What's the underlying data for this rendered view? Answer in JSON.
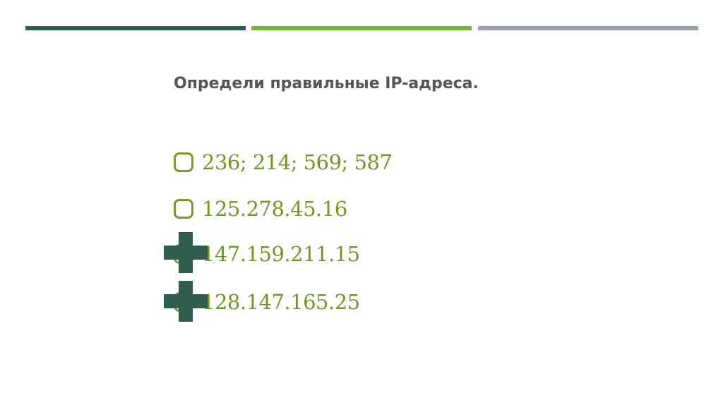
{
  "colors": {
    "bar1": "#2f5e50",
    "bar2": "#7cb33a",
    "bar3": "#9aa0a8",
    "option_text": "#6b9a1f",
    "marker": "#2f5e50"
  },
  "question": "Определи правильные IP-адреса.",
  "options": [
    {
      "label": "236; 214; 569; 587",
      "marked": false
    },
    {
      "label": "125.278.45.16",
      "marked": false
    },
    {
      "label": "147.159.211.15",
      "marked": true
    },
    {
      "label": "128.147.165.25",
      "marked": true
    }
  ],
  "marker_icon": "plus-icon"
}
